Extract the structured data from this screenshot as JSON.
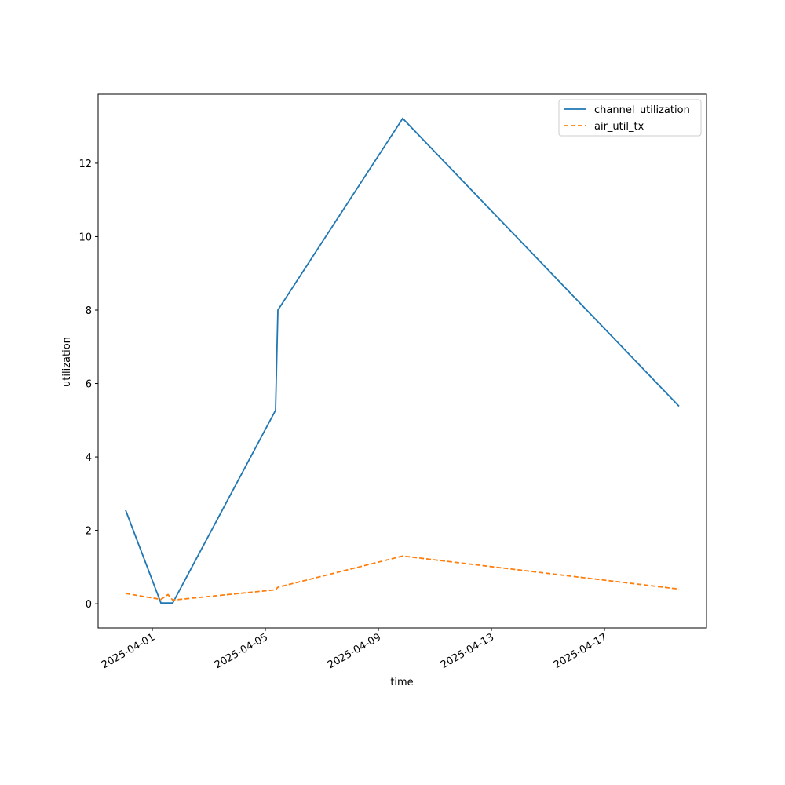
{
  "chart_data": {
    "type": "line",
    "xlabel": "time",
    "ylabel": "utilization",
    "x": [
      "2025-03-31T01:20",
      "2025-04-01T07:20",
      "2025-04-01T13:20",
      "2025-04-01T17:20",
      "2025-04-05T08:40",
      "2025-04-05T10:40",
      "2025-04-09T20:40",
      "2025-04-19T15:20"
    ],
    "series": [
      {
        "name": "channel_utilization",
        "color": "#1f77b4",
        "dash": "solid",
        "values": [
          2.55,
          0.02,
          0.02,
          0.02,
          5.27,
          8.0,
          13.22,
          5.38
        ]
      },
      {
        "name": "air_util_tx",
        "color": "#ff7f0e",
        "dash": "dashed",
        "values": [
          0.28,
          0.12,
          0.25,
          0.1,
          0.38,
          0.45,
          1.3,
          0.4
        ]
      }
    ],
    "xlim": [
      "2025-03-30T02:00",
      "2025-04-20T14:40"
    ],
    "xticks": [
      "2025-04-01",
      "2025-04-05",
      "2025-04-09",
      "2025-04-13",
      "2025-04-17"
    ],
    "ylim": [
      -0.66,
      13.88
    ],
    "yticks": [
      0,
      2,
      4,
      6,
      8,
      10,
      12
    ],
    "legend": "upper right"
  }
}
